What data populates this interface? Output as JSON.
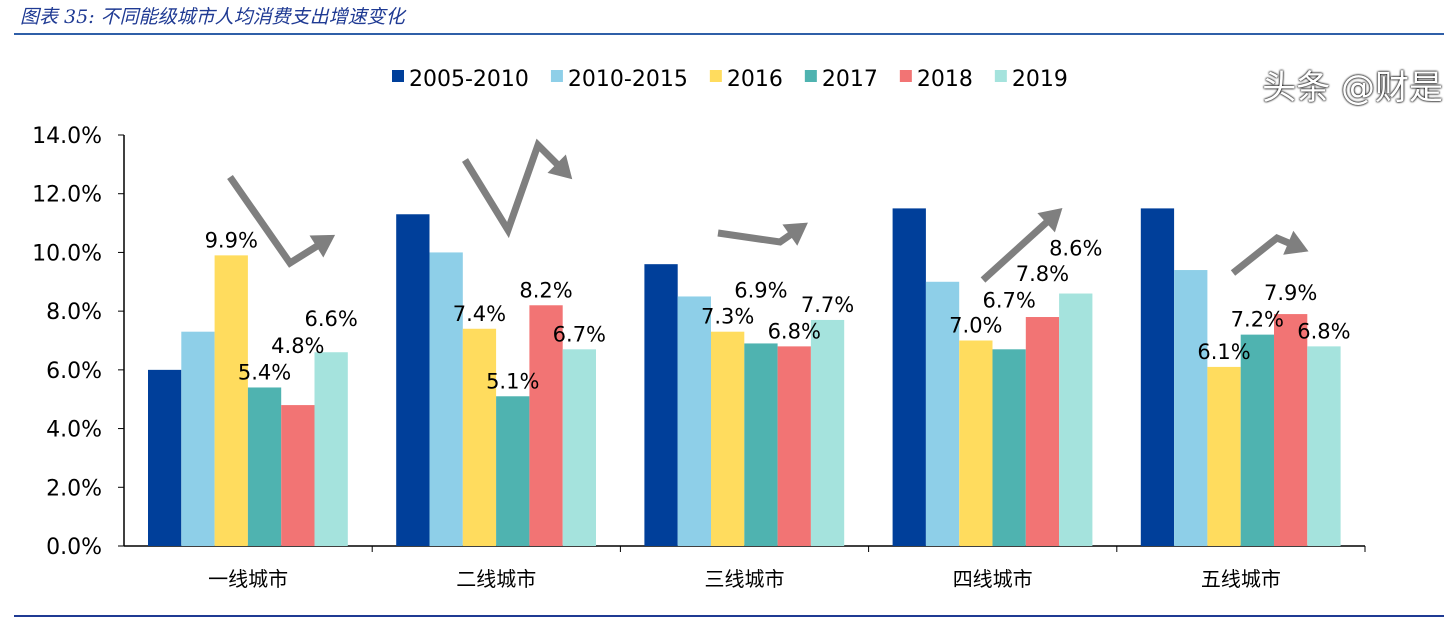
{
  "title": "图表 35:  不同能级城市人均消费支出增速变化",
  "watermark": "头条 @财是",
  "chart_data": {
    "type": "bar",
    "categories": [
      "一线城市",
      "二线城市",
      "三线城市",
      "四线城市",
      "五线城市"
    ],
    "series": [
      {
        "name": "2005-2010",
        "color": "#003f9a",
        "values": [
          6.0,
          11.3,
          9.6,
          11.5,
          11.5
        ]
      },
      {
        "name": "2010-2015",
        "color": "#8ecfe8",
        "values": [
          7.3,
          10.0,
          8.5,
          9.0,
          9.4
        ]
      },
      {
        "name": "2016",
        "color": "#ffdc5e",
        "values": [
          9.9,
          7.4,
          7.3,
          7.0,
          6.1
        ]
      },
      {
        "name": "2017",
        "color": "#4fb3b0",
        "values": [
          5.4,
          5.1,
          6.9,
          6.7,
          7.2
        ]
      },
      {
        "name": "2018",
        "color": "#f27474",
        "values": [
          4.8,
          8.2,
          6.8,
          7.8,
          7.9
        ]
      },
      {
        "name": "2019",
        "color": "#a5e3dd",
        "values": [
          6.6,
          6.7,
          7.7,
          8.6,
          6.8
        ]
      }
    ],
    "labeled_series": [
      "2016",
      "2017",
      "2018",
      "2019"
    ],
    "ylim": [
      0,
      14
    ],
    "yticks": [
      "0.0%",
      "2.0%",
      "4.0%",
      "6.0%",
      "8.0%",
      "10.0%",
      "12.0%",
      "14.0%"
    ],
    "value_format": "percent-1dp",
    "legend": "top",
    "grid": false,
    "trend_arrow_color": "#7f7f7f"
  }
}
